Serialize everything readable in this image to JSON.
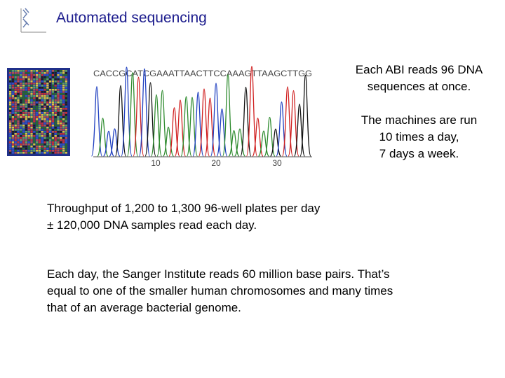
{
  "header": {
    "title": "Automated sequencing"
  },
  "figure": {
    "sequence": "CACCGCATCGAAATTAACTTCCAAAGTTAAGCTTGG",
    "ticks": [
      "10",
      "20",
      "30"
    ]
  },
  "sidebar": {
    "paragraphs": [
      [
        "Each ABI reads 96 DNA",
        "sequences at once."
      ],
      [
        "The machines are run",
        "10 times a day,",
        "7 days a week."
      ]
    ]
  },
  "body": {
    "paragraphs": [
      [
        "Throughput of 1,200 to 1,300 96-well plates per day",
        "± 120,000 DNA samples read each day."
      ],
      [
        "Each day, the Sanger Institute reads 60 million base pairs. That’s",
        "equal to one of the smaller human chromosomes and many times",
        "that of an average bacterial genome."
      ]
    ]
  }
}
